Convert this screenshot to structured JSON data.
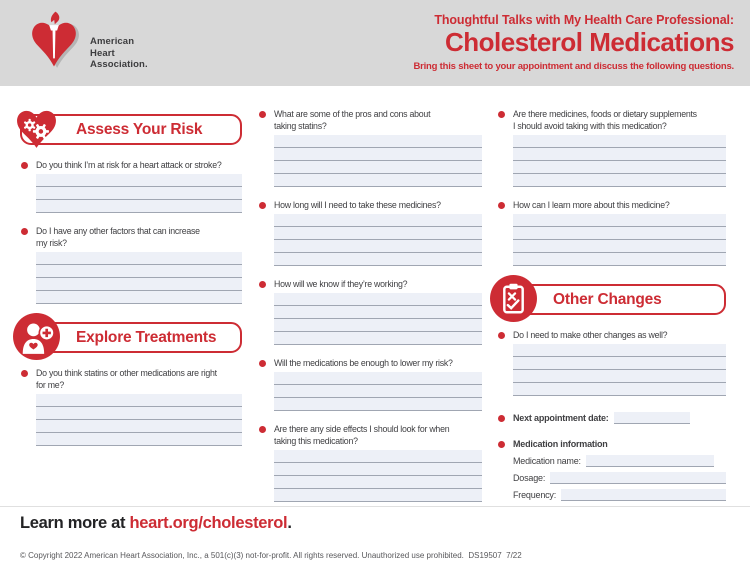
{
  "header": {
    "org_line1": "American",
    "org_line2": "Heart",
    "org_line3": "Association.",
    "kicker": "Thoughtful Talks with My Health Care Professional:",
    "title": "Cholesterol Medications",
    "subtitle": "Bring this sheet to your appointment and discuss the following questions."
  },
  "colors": {
    "accent_red": "#cd2c34",
    "header_bg": "#d8d8d8",
    "body_text": "#404043",
    "answer_field_bg": "#edf0f7",
    "answer_line": "#a0a6b2"
  },
  "columns": [
    {
      "blocks": [
        {
          "type": "section",
          "icon": "heart-gears-icon",
          "label": "Assess Your Risk"
        },
        {
          "type": "question",
          "text": "Do you think I’m at risk for a heart attack or stroke?",
          "lines": 3
        },
        {
          "type": "question",
          "text": "Do I have any other factors that can increase\nmy risk?",
          "lines": 4
        },
        {
          "type": "section",
          "icon": "person-plus-icon",
          "label": "Explore Treatments"
        },
        {
          "type": "question",
          "text": "Do you think statins or other medications are right\nfor me?",
          "lines": 4
        }
      ]
    },
    {
      "blocks": [
        {
          "type": "question",
          "text": "What are some of the pros and cons about\ntaking statins?",
          "lines": 4
        },
        {
          "type": "question",
          "text": "How long will I need to take these medicines?",
          "lines": 4
        },
        {
          "type": "question",
          "text": "How will we know if they’re working?",
          "lines": 4
        },
        {
          "type": "question",
          "text": "Will the medications be enough to lower my risk?",
          "lines": 3
        },
        {
          "type": "question",
          "text": "Are there any side effects I should look for when\ntaking this medication?",
          "lines": 4
        }
      ]
    },
    {
      "blocks": [
        {
          "type": "question",
          "text": "Are there medicines, foods or dietary supplements\nI should avoid taking with this medication?",
          "lines": 4
        },
        {
          "type": "question",
          "text": "How can I learn more about this medicine?",
          "lines": 4
        },
        {
          "type": "section",
          "icon": "clipboard-check-icon",
          "label": "Other Changes"
        },
        {
          "type": "question",
          "text": "Do I need to make other changes as well?",
          "lines": 4
        },
        {
          "type": "inline-field",
          "label": "Next appointment date:"
        },
        {
          "type": "field-group",
          "label": "Medication information",
          "fields": [
            {
              "label": "Medication name:"
            },
            {
              "label": "Dosage:"
            },
            {
              "label": "Frequency:"
            }
          ]
        }
      ]
    }
  ],
  "footer": {
    "learn_more_prefix": "Learn more at ",
    "learn_more_link": "heart.org/cholesterol",
    "learn_more_suffix": ".",
    "copyright": "© Copyright 2022 American Heart Association, Inc., a 501(c)(3) not-for-profit. All rights reserved. Unauthorized use prohibited.  DS19507  7/22"
  }
}
